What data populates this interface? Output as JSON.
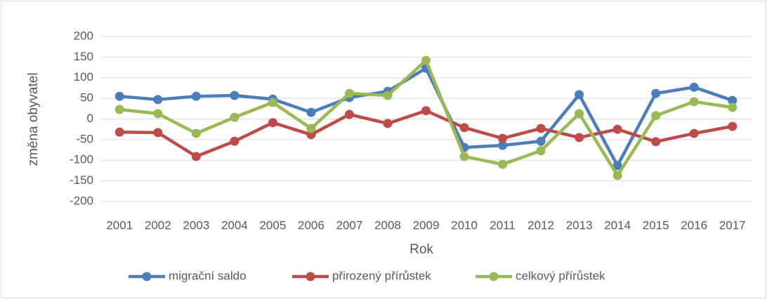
{
  "chart_data": {
    "type": "line",
    "x_label": "Rok",
    "y_label": "změna obyvatel",
    "categories": [
      "2001",
      "2002",
      "2003",
      "2004",
      "2005",
      "2006",
      "2007",
      "2008",
      "2009",
      "2010",
      "2011",
      "2012",
      "2013",
      "2014",
      "2015",
      "2016",
      "2017"
    ],
    "series": [
      {
        "name": "migrační saldo",
        "color": "#4a7ebb",
        "values": [
          55,
          47,
          55,
          57,
          48,
          16,
          52,
          67,
          123,
          -69,
          -64,
          -54,
          59,
          -113,
          62,
          77,
          45
        ]
      },
      {
        "name": "přirozený přírůstek",
        "color": "#be4b48",
        "values": [
          -32,
          -33,
          -91,
          -54,
          -9,
          -38,
          11,
          -11,
          20,
          -21,
          -47,
          -23,
          -45,
          -25,
          -55,
          -35,
          -18
        ]
      },
      {
        "name": "celkový přírůstek",
        "color": "#98b954",
        "values": [
          23,
          13,
          -35,
          4,
          40,
          -23,
          62,
          57,
          142,
          -91,
          -110,
          -77,
          13,
          -137,
          8,
          42,
          28
        ]
      }
    ],
    "ylim": [
      -200,
      200
    ],
    "yticks": [
      -200,
      -150,
      -100,
      -50,
      0,
      50,
      100,
      150,
      200
    ],
    "grid": true,
    "legend": "bottom"
  }
}
